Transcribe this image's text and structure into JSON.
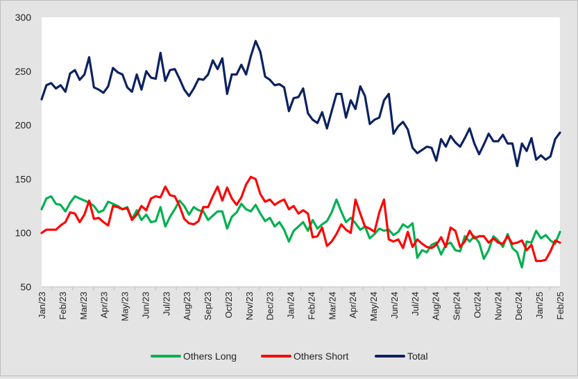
{
  "chart_data": {
    "type": "line",
    "title": "",
    "xlabel": "",
    "ylabel": "",
    "ylim": [
      50,
      300
    ],
    "yticks": [
      50,
      100,
      150,
      200,
      250,
      300
    ],
    "grid": false,
    "legend_position": "bottom",
    "x_tick_labels": [
      "Jan/23",
      "Feb/23",
      "Mar/23",
      "Apr/23",
      "May/23",
      "Jun/23",
      "Jul/23",
      "Aug/23",
      "Sep/23",
      "Oct/23",
      "Nov/23",
      "Dec/23",
      "Jan/24",
      "Feb/24",
      "Mar/24",
      "Apr/24",
      "May/24",
      "Jun/24",
      "Jul/24",
      "Aug/24",
      "Sep/24",
      "Oct/24",
      "Nov/24",
      "Dec/24",
      "Jan/25",
      "Feb/25"
    ],
    "x_start": "2023-01",
    "x_end": "2025-02",
    "series": [
      {
        "name": "Total",
        "color": "#0b2161",
        "values": [
          224,
          237,
          239,
          234,
          237,
          231,
          248,
          251,
          242,
          247,
          263,
          235,
          233,
          230,
          236,
          253,
          249,
          247,
          235,
          231,
          247,
          233,
          250,
          244,
          243,
          267,
          241,
          251,
          252,
          243,
          233,
          227,
          234,
          243,
          242,
          247,
          260,
          252,
          262,
          229,
          247,
          247,
          256,
          247,
          264,
          278,
          268,
          245,
          242,
          237,
          238,
          235,
          213,
          225,
          226,
          234,
          211,
          205,
          202,
          212,
          197,
          213,
          229,
          229,
          207,
          223,
          215,
          236,
          227,
          201,
          205,
          207,
          223,
          229,
          192,
          199,
          203,
          196,
          179,
          174,
          177,
          180,
          179,
          167,
          187,
          180,
          190,
          184,
          180,
          188,
          197,
          183,
          173,
          182,
          192,
          185,
          185,
          191,
          183,
          183,
          162,
          183,
          176,
          188,
          168,
          172,
          168,
          171,
          187,
          193
        ]
      },
      {
        "name": "Others Long",
        "color": "#00b050",
        "values": [
          122,
          132,
          134,
          127,
          126,
          120,
          128,
          134,
          132,
          130,
          128,
          125,
          119,
          121,
          129,
          127,
          125,
          122,
          124,
          113,
          121,
          112,
          117,
          110,
          111,
          124,
          106,
          115,
          122,
          130,
          125,
          117,
          124,
          121,
          120,
          112,
          116,
          120,
          120,
          104,
          115,
          119,
          127,
          122,
          120,
          126,
          118,
          111,
          114,
          106,
          110,
          103,
          92,
          102,
          106,
          110,
          102,
          112,
          104,
          108,
          111,
          119,
          131,
          120,
          110,
          114,
          109,
          103,
          106,
          95,
          99,
          104,
          102,
          103,
          98,
          101,
          108,
          105,
          109,
          77,
          84,
          82,
          89,
          91,
          80,
          89,
          91,
          84,
          83,
          97,
          92,
          97,
          91,
          76,
          84,
          97,
          93,
          87,
          99,
          86,
          82,
          68,
          92,
          91,
          102,
          95,
          98,
          93,
          90,
          101
        ]
      },
      {
        "name": "Others Short",
        "color": "#ff0000",
        "values": [
          100,
          103,
          103,
          103,
          107,
          110,
          119,
          118,
          110,
          117,
          130,
          113,
          114,
          110,
          107,
          125,
          124,
          122,
          123,
          112,
          117,
          125,
          121,
          132,
          134,
          133,
          143,
          135,
          134,
          125,
          113,
          109,
          108,
          111,
          124,
          124,
          134,
          143,
          130,
          142,
          132,
          126,
          133,
          145,
          152,
          150,
          136,
          129,
          131,
          126,
          129,
          131,
          122,
          125,
          118,
          121,
          118,
          96,
          97,
          105,
          88,
          92,
          99,
          108,
          103,
          100,
          131,
          118,
          106,
          104,
          101,
          119,
          131,
          94,
          92,
          94,
          86,
          101,
          87,
          94,
          90,
          87,
          86,
          89,
          96,
          87,
          105,
          102,
          87,
          92,
          102,
          95,
          97,
          97,
          91,
          95,
          91,
          90,
          97,
          90,
          91,
          93,
          84,
          89,
          74,
          74,
          75,
          83,
          93,
          91
        ]
      }
    ]
  }
}
